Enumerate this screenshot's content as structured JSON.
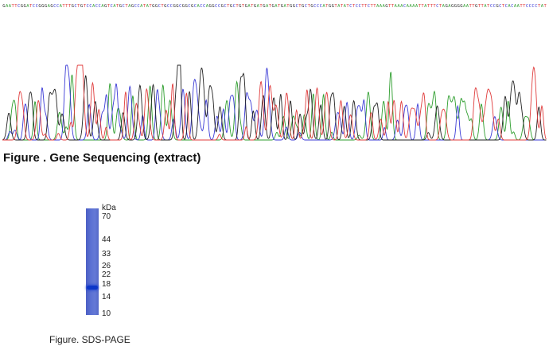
{
  "sequence_figure": {
    "read_sequence": "GAATTCGGATCCGGGAGCCATTTGCTGTCCACCAGTCATGCTAGCCATATGGCTGCCGGCGGCGCACCAGGCCGCTGCTGTGATGATGATGATGATGGCTGCTGCCCATGGTATATCTCCTTCTTAAAGTTAAACAAAATTATTTCTAGAGGGGAATTGTTATCCGCTCACAATTCCCCTAT",
    "base_colors": {
      "A": "#2e9e2e",
      "C": "#3a3ad6",
      "G": "#222222",
      "T": "#e03c3c"
    },
    "caption": "Figure . Gene Sequencing (extract)"
  },
  "chart_data": {
    "type": "line",
    "title": "",
    "xlabel": "",
    "ylabel": "",
    "grid": false,
    "peaks": 160,
    "relative_height_profile": [
      0.42,
      0.45,
      0.55,
      0.72,
      0.62,
      0.55,
      0.58,
      0.68,
      0.55,
      0.5,
      0.62,
      0.58,
      0.55,
      0.58,
      0.52,
      0.5,
      0.45,
      0.4,
      0.38,
      0.42,
      0.45,
      0.4,
      0.45,
      0.42
    ]
  },
  "gel_figure": {
    "unit_label": "kDa",
    "markers": [
      {
        "label": "70",
        "kda": 70
      },
      {
        "label": "44",
        "kda": 44
      },
      {
        "label": "33",
        "kda": 33
      },
      {
        "label": "26",
        "kda": 26
      },
      {
        "label": "22",
        "kda": 22
      },
      {
        "label": "18",
        "kda": 18
      },
      {
        "label": "14",
        "kda": 14
      },
      {
        "label": "10",
        "kda": 10
      }
    ],
    "band_kda": 17,
    "lane_color": "#5b71d3",
    "band_color": "#0c36c8",
    "caption": "Figure. SDS-PAGE"
  }
}
